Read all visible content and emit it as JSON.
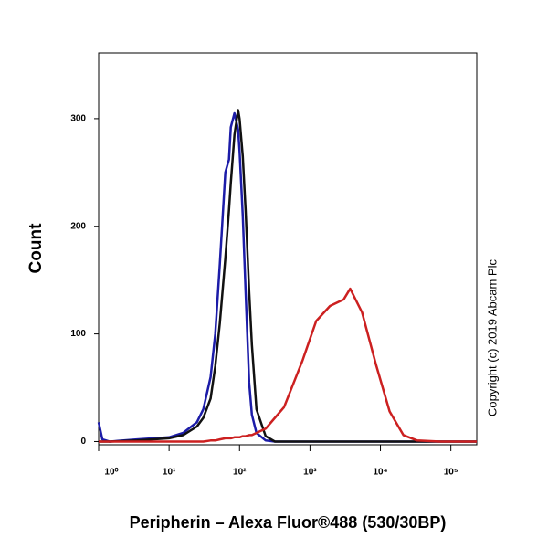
{
  "chart_data": {
    "type": "line",
    "xscale": "log",
    "y_label": "Count",
    "x_label": "Peripherin – Alexa Fluor®488 (530/30BP)",
    "annotation": "Copyright (c) 2019 Abcam Plc",
    "xlim": [
      1,
      233000
    ],
    "ylim": [
      -3,
      361
    ],
    "xticks": [
      {
        "value": 1,
        "label": "10⁰"
      },
      {
        "value": 10,
        "label": "10¹"
      },
      {
        "value": 100,
        "label": "10²"
      },
      {
        "value": 1000,
        "label": "10³"
      },
      {
        "value": 10000,
        "label": "10⁴"
      },
      {
        "value": 100000,
        "label": "10⁵"
      }
    ],
    "yticks": [
      0,
      100,
      200,
      300
    ],
    "x": [
      1,
      1.13,
      1.43,
      3.5,
      10,
      15.8,
      24.8,
      30.6,
      38.9,
      45.2,
      52.5,
      62.8,
      70.8,
      75.2,
      84.8,
      95.5,
      100,
      111,
      122,
      137,
      150,
      174,
      235,
      318,
      428,
      781,
      1225,
      1920,
      3010,
      3720,
      5480,
      8600,
      13500,
      21200,
      33200,
      70300,
      233000
    ],
    "series": [
      {
        "color": "#1c1ca8",
        "values": [
          18,
          2,
          0,
          2,
          4,
          8,
          18,
          30,
          60,
          100,
          165,
          250,
          262,
          292,
          305,
          290,
          270,
          210,
          140,
          55,
          25,
          8,
          1,
          0,
          0,
          0,
          0,
          0,
          0,
          0,
          0,
          0,
          0,
          0,
          0,
          0,
          0
        ]
      },
      {
        "color": "#111111",
        "values": [
          0,
          0,
          0,
          1,
          3,
          6,
          14,
          22,
          40,
          70,
          110,
          170,
          215,
          240,
          285,
          308,
          300,
          265,
          215,
          140,
          90,
          30,
          5,
          0,
          0,
          0,
          0,
          0,
          0,
          0,
          0,
          0,
          0,
          0,
          0,
          0,
          0
        ]
      },
      {
        "color": "#cc2020",
        "values": [
          0,
          0,
          0,
          0,
          0,
          0,
          0,
          0,
          1,
          1,
          2,
          3,
          3,
          3,
          4,
          4,
          4,
          5,
          5,
          6,
          6,
          8,
          12,
          22,
          32,
          75,
          112,
          126,
          132,
          142,
          120,
          72,
          28,
          6,
          1,
          0,
          0
        ]
      }
    ]
  }
}
